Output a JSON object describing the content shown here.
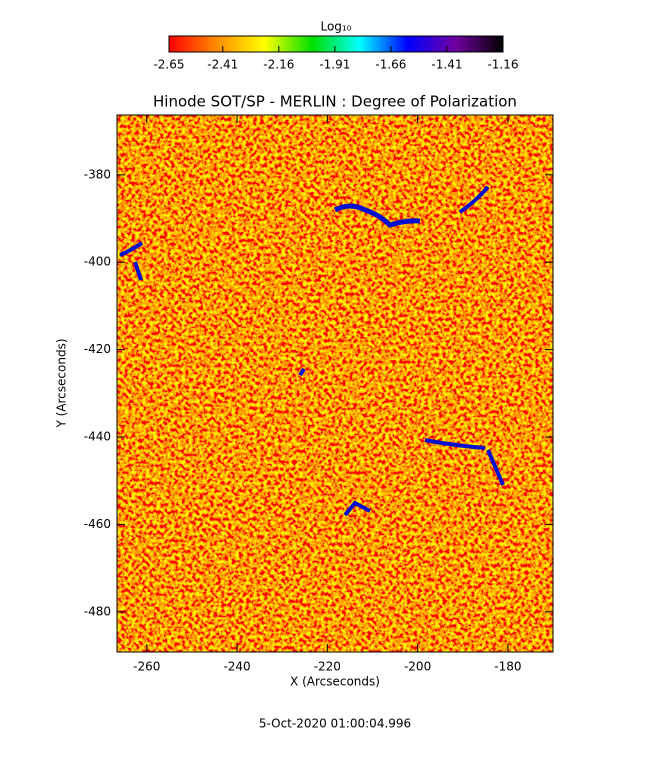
{
  "chart_data": {
    "type": "heatmap",
    "title": "Hinode SOT/SP - MERLIN : Degree of Polarization",
    "xlabel": "X (Arcseconds)",
    "ylabel": "Y (Arcseconds)",
    "footer": "5-Oct-2020 01:00:04.996",
    "xlim": [
      -266.6,
      -170.0
    ],
    "xticks": [
      -260,
      -240,
      -220,
      -200,
      -180
    ],
    "ylim": [
      -489.2,
      -366.3
    ],
    "yticks": [
      -480,
      -460,
      -440,
      -420,
      -400,
      -380
    ],
    "colorbar": {
      "label": "Log₁₀",
      "lim": [
        -2.65,
        -1.16
      ],
      "ticks": [
        -2.65,
        -2.41,
        -2.16,
        -1.91,
        -1.66,
        -1.41,
        -1.16
      ],
      "colors": [
        "#ff0000",
        "#ff8c00",
        "#ffff00",
        "#00e000",
        "#00ffff",
        "#0000ff",
        "#7000a0",
        "#000000"
      ]
    }
  }
}
